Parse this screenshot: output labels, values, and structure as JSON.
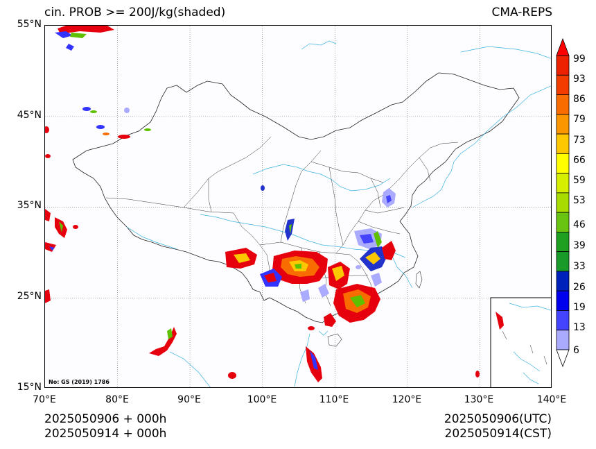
{
  "header": {
    "title_left": "cin. PROB >= 200J/kg(shaded)",
    "title_right": "CMA-REPS"
  },
  "map": {
    "review_number": "No: GS (2019) 1786",
    "lat_labels": [
      "55°N",
      "45°N",
      "35°N",
      "25°N",
      "15°N"
    ],
    "lon_labels": [
      "70°E",
      "80°E",
      "90°E",
      "100°E",
      "110°E",
      "120°E",
      "130°E",
      "140°E"
    ]
  },
  "colorbar": {
    "labels": [
      "99",
      "93",
      "86",
      "79",
      "73",
      "66",
      "59",
      "53",
      "46",
      "39",
      "33",
      "26",
      "19",
      "13",
      "6"
    ],
    "colors": [
      "#ff0000",
      "#ee2200",
      "#f33d00",
      "#f86c00",
      "#fb9600",
      "#fdc800",
      "#ffff00",
      "#d6ee00",
      "#a8dc00",
      "#68c410",
      "#1fa020",
      "#1a9a28",
      "#0022bb",
      "#0000ee",
      "#4444ff",
      "#aaaaff",
      "#ffffff"
    ]
  },
  "footer": {
    "init_utc": "2025050906  +  000h",
    "init_cst": "2025050914  +  000h",
    "valid_utc": "2025050906(UTC)",
    "valid_cst": "2025050914(CST)"
  }
}
